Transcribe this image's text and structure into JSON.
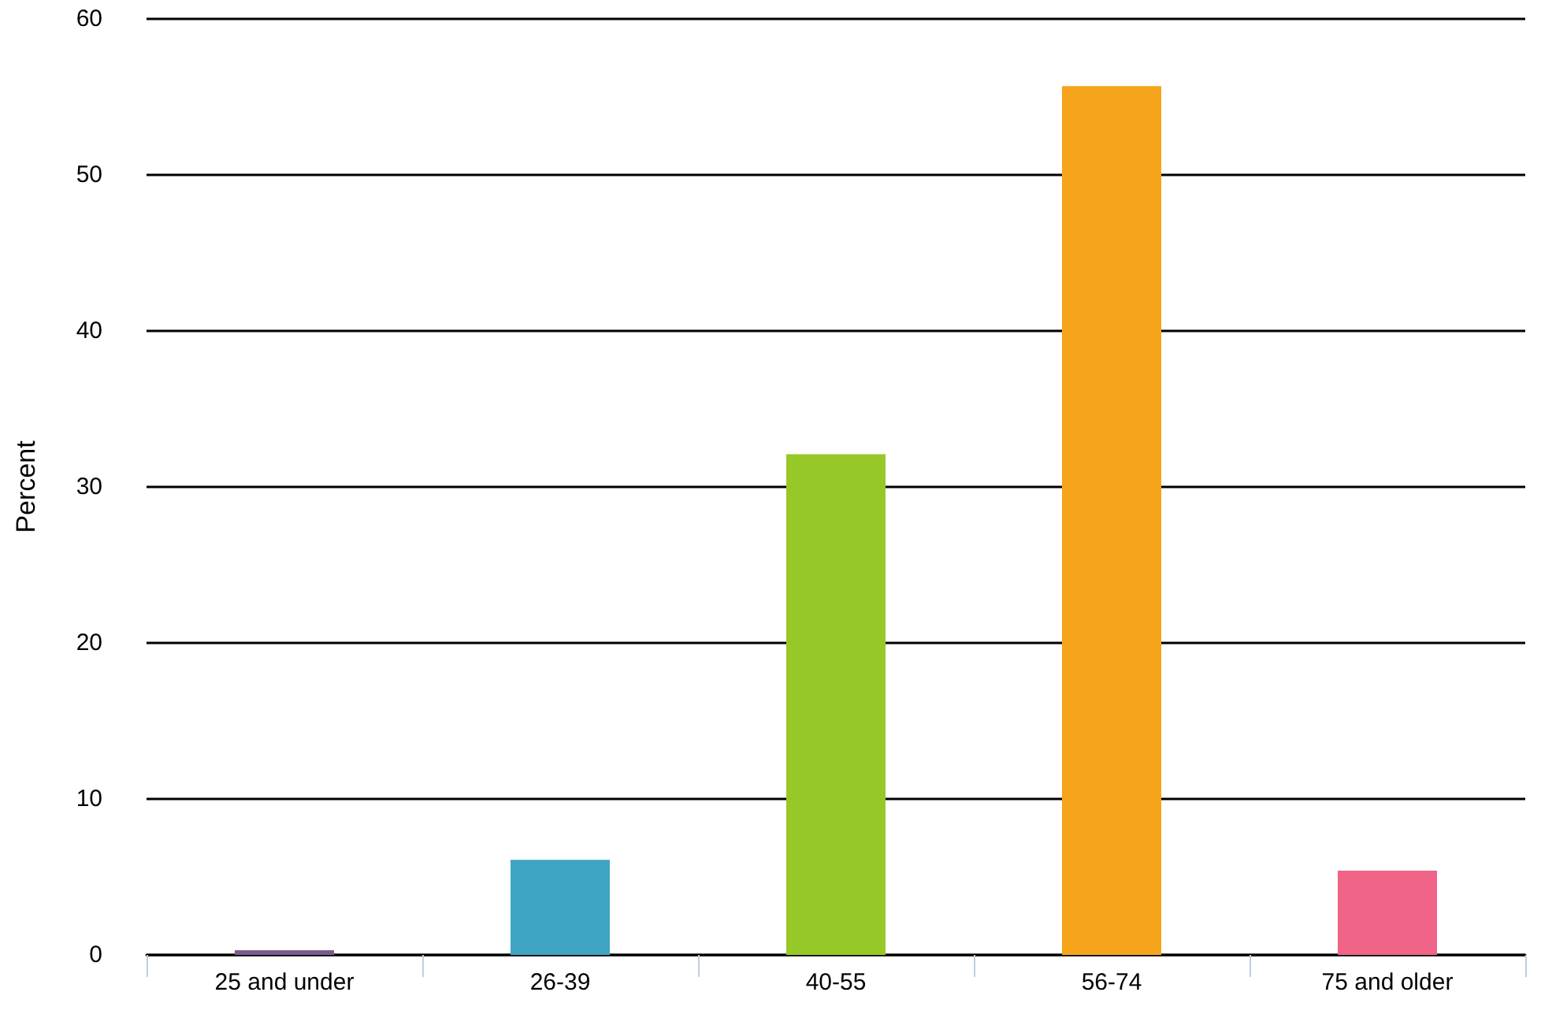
{
  "chart_data": {
    "type": "bar",
    "ylabel": "Percent",
    "categories": [
      "25 and under",
      "26-39",
      "40-55",
      "56-74",
      "75 and older"
    ],
    "values": [
      0.3,
      6.1,
      32.1,
      55.7,
      5.4
    ],
    "colors": [
      "#7a5a8e",
      "#40a4c4",
      "#96c828",
      "#f5a41c",
      "#f06488"
    ],
    "ylim": [
      0,
      60
    ],
    "yticks": [
      0,
      10,
      20,
      30,
      40,
      50,
      60
    ],
    "grid": "y"
  }
}
